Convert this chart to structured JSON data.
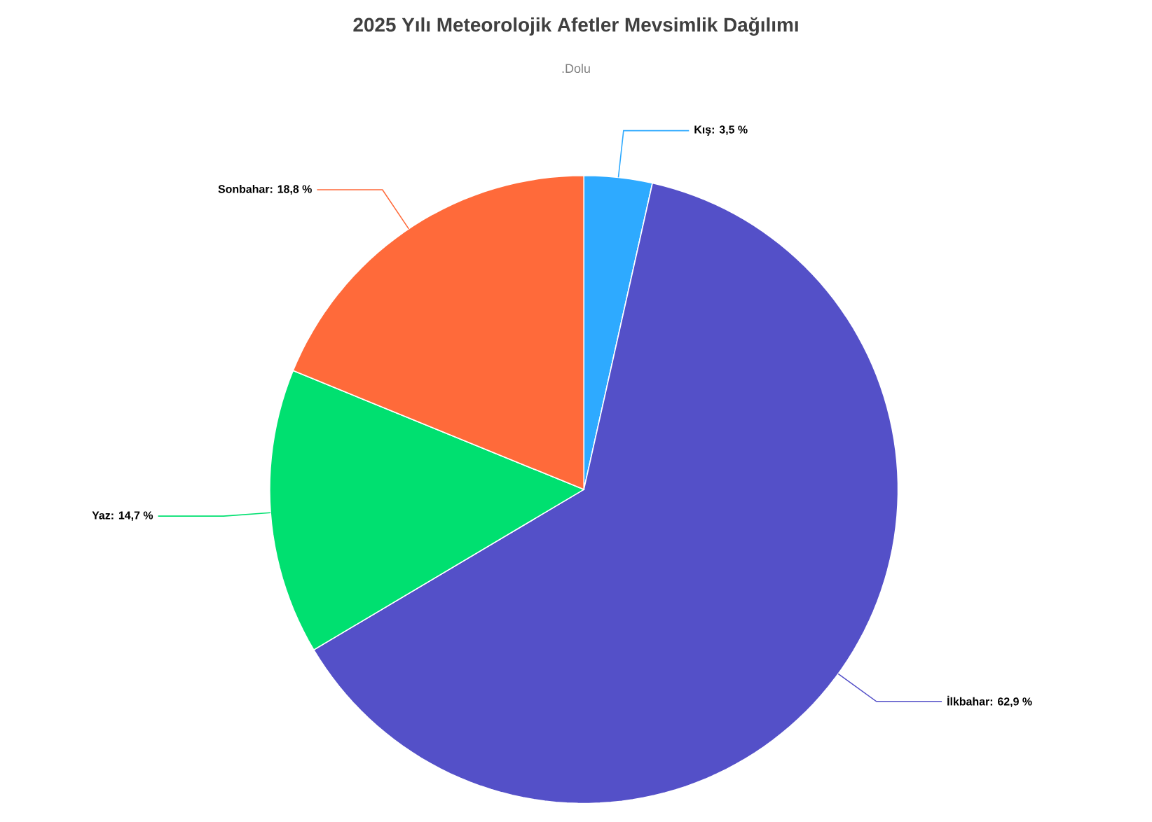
{
  "chart_data": {
    "type": "pie",
    "title": "2025 Yılı Meteorolojik Afetler Mevsimlik Dağılımı",
    "subtitle": ".Dolu",
    "categories": [
      "Kış",
      "İlkbahar",
      "Yaz",
      "Sonbahar"
    ],
    "values": [
      3.5,
      62.9,
      14.7,
      18.8
    ],
    "value_labels": [
      ": 3,5 %",
      ": 62,9 %",
      ": 14,7 %",
      ": 18,8 %"
    ],
    "colors": [
      "#2eaaff",
      "#5450c8",
      "#00e070",
      "#ff6a3a"
    ]
  }
}
